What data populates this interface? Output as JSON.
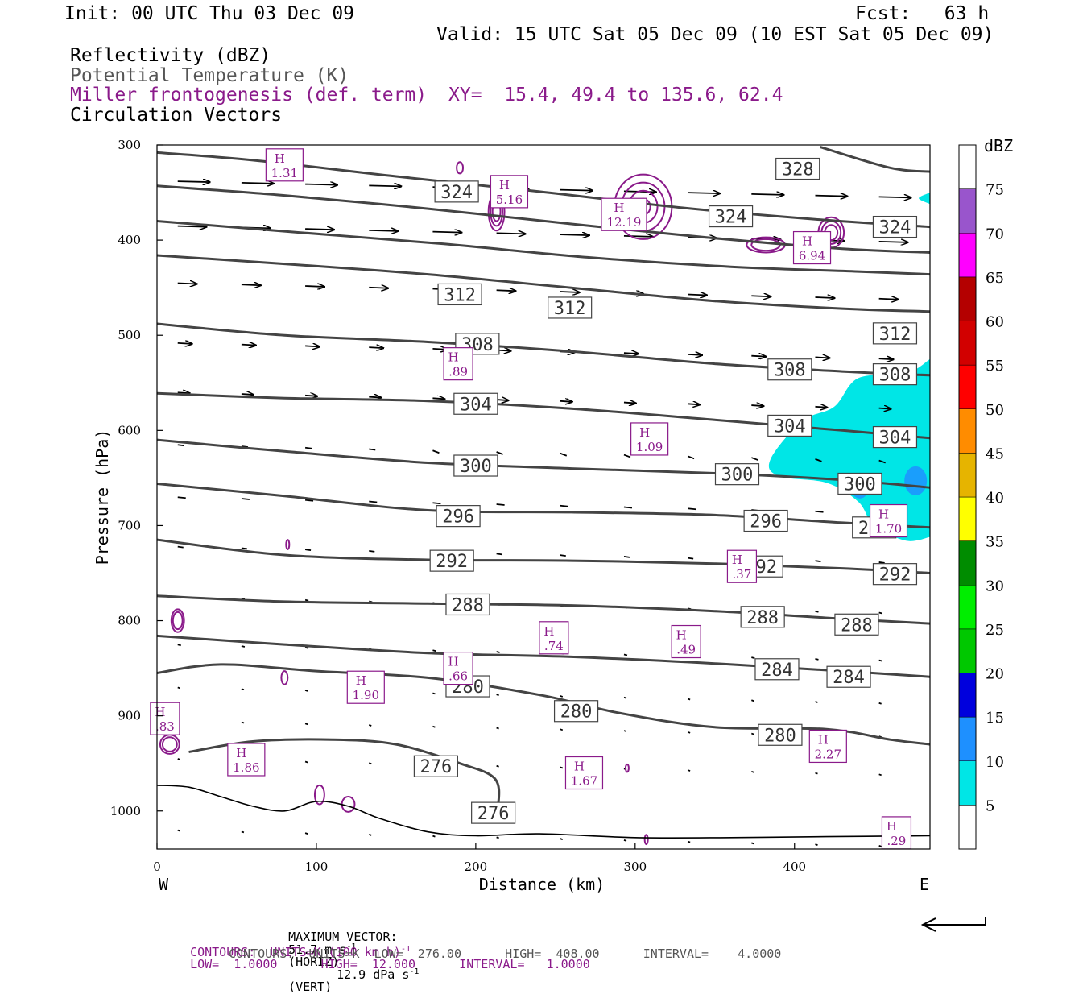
{
  "header": {
    "init": "Init: 00 UTC Thu 03 Dec 09",
    "fcst": "Fcst:   63 h",
    "valid": "Valid: 15 UTC Sat 05 Dec 09 (10 EST Sat 05 Dec 09)",
    "field1": "Reflectivity (dBZ)",
    "field2": "Potential Temperature (K)",
    "field3": "Miller frontogenesis (def. term)",
    "xy": "XY=  15.4, 49.4 to 135.6, 62.4",
    "field4": "Circulation Vectors"
  },
  "footer": {
    "max_vector_label": "MAXIMUM VECTOR:",
    "max_vector_horiz": "51.7 m s",
    "horiz_exp": "-1",
    "horiz_tag": "(HORIZ)",
    "max_vector_vert": "12.9 dPa s",
    "vert_exp": "-1",
    "vert_tag": "(VERT)",
    "contours1_a": "CONTOURS:  UNITS=K (100 km h)",
    "contours1_exp": "-1",
    "contours1_b": "LOW=  1.0000      HIGH=  12.000      INTERVAL=   1.0000",
    "contours2": "CONTOURS:  UNITS=K  LOW=  276.00      HIGH=  408.00      INTERVAL=    4.0000"
  },
  "colors": {
    "theta": "#444444",
    "fronto": "#8a1a8a",
    "cyan": "#00e6e6",
    "blue": "#1e90ff"
  },
  "chart_data": {
    "type": "contour",
    "xlabel": "Distance (km)",
    "ylabel": "Pressure (hPa)",
    "x_left_label": "W",
    "x_right_label": "E",
    "xlim": [
      0,
      485
    ],
    "ylim": [
      300,
      1040
    ],
    "xticks": [
      0,
      100,
      200,
      300,
      400
    ],
    "yticks": [
      300,
      400,
      500,
      600,
      700,
      800,
      900,
      1000
    ],
    "colorbar": {
      "title": "dBZ",
      "levels": [
        "5",
        "10",
        "15",
        "20",
        "25",
        "30",
        "35",
        "40",
        "45",
        "50",
        "55",
        "60",
        "65",
        "70",
        "75"
      ],
      "colors": [
        "#ffffff",
        "#00e6e6",
        "#1e90ff",
        "#0000dd",
        "#00c800",
        "#00ee00",
        "#008c00",
        "#ffff00",
        "#e6b400",
        "#ff8c00",
        "#ff0000",
        "#d20000",
        "#b40000",
        "#ff00ff",
        "#9955cc",
        "#ffffff"
      ]
    },
    "theta_labels": [
      {
        "value": "328",
        "x": 402,
        "p": 325
      },
      {
        "value": "324",
        "x": 188,
        "p": 349
      },
      {
        "value": "324",
        "x": 360,
        "p": 375
      },
      {
        "value": "324",
        "x": 463,
        "p": 386
      },
      {
        "value": "312",
        "x": 190,
        "p": 457
      },
      {
        "value": "312",
        "x": 259,
        "p": 471
      },
      {
        "value": "312",
        "x": 463,
        "p": 498
      },
      {
        "value": "308",
        "x": 201,
        "p": 509
      },
      {
        "value": "308",
        "x": 397,
        "p": 536
      },
      {
        "value": "308",
        "x": 463,
        "p": 541
      },
      {
        "value": "304",
        "x": 200,
        "p": 572
      },
      {
        "value": "304",
        "x": 397,
        "p": 595
      },
      {
        "value": "304",
        "x": 463,
        "p": 607
      },
      {
        "value": "300",
        "x": 200,
        "p": 637
      },
      {
        "value": "300",
        "x": 364,
        "p": 646
      },
      {
        "value": "300",
        "x": 441,
        "p": 656
      },
      {
        "value": "296",
        "x": 189,
        "p": 690
      },
      {
        "value": "296",
        "x": 382,
        "p": 695
      },
      {
        "value": "296",
        "x": 450,
        "p": 702
      },
      {
        "value": "292",
        "x": 185,
        "p": 737
      },
      {
        "value": "292",
        "x": 379,
        "p": 743
      },
      {
        "value": "292",
        "x": 463,
        "p": 751
      },
      {
        "value": "288",
        "x": 195,
        "p": 783
      },
      {
        "value": "288",
        "x": 380,
        "p": 796
      },
      {
        "value": "288",
        "x": 439,
        "p": 804
      },
      {
        "value": "284",
        "x": 389,
        "p": 851
      },
      {
        "value": "284",
        "x": 434,
        "p": 859
      },
      {
        "value": "280",
        "x": 195,
        "p": 869
      },
      {
        "value": "280",
        "x": 263,
        "p": 895
      },
      {
        "value": "280",
        "x": 391,
        "p": 920
      },
      {
        "value": "276",
        "x": 175,
        "p": 953
      },
      {
        "value": "276",
        "x": 211,
        "p": 1002
      }
    ],
    "theta_lines": [
      {
        "k": 328,
        "pts": [
          [
            416,
            302
          ],
          [
            460,
            324
          ],
          [
            485,
            328
          ]
        ]
      },
      {
        "k": 324,
        "pts": [
          [
            0,
            308
          ],
          [
            60,
            316
          ],
          [
            150,
            333
          ],
          [
            240,
            349
          ],
          [
            330,
            366
          ],
          [
            420,
            379
          ],
          [
            485,
            386
          ]
        ]
      },
      {
        "k": 320,
        "pts": [
          [
            0,
            343
          ],
          [
            80,
            353
          ],
          [
            170,
            367
          ],
          [
            260,
            383
          ],
          [
            350,
            398
          ],
          [
            430,
            409
          ],
          [
            485,
            413
          ]
        ]
      },
      {
        "k": 316,
        "pts": [
          [
            0,
            380
          ],
          [
            90,
            392
          ],
          [
            180,
            404
          ],
          [
            270,
            418
          ],
          [
            360,
            428
          ],
          [
            440,
            433
          ],
          [
            485,
            436
          ]
        ]
      },
      {
        "k": 312,
        "pts": [
          [
            0,
            416
          ],
          [
            80,
            425
          ],
          [
            170,
            436
          ],
          [
            260,
            450
          ],
          [
            350,
            464
          ],
          [
            430,
            472
          ],
          [
            485,
            475
          ]
        ]
      },
      {
        "k": 308,
        "pts": [
          [
            0,
            488
          ],
          [
            80,
            500
          ],
          [
            170,
            507
          ],
          [
            260,
            517
          ],
          [
            350,
            530
          ],
          [
            430,
            538
          ],
          [
            485,
            542
          ]
        ]
      },
      {
        "k": 304,
        "pts": [
          [
            0,
            561
          ],
          [
            80,
            566
          ],
          [
            170,
            569
          ],
          [
            260,
            577
          ],
          [
            350,
            589
          ],
          [
            430,
            600
          ],
          [
            485,
            608
          ]
        ]
      },
      {
        "k": 300,
        "pts": [
          [
            0,
            610
          ],
          [
            80,
            622
          ],
          [
            170,
            634
          ],
          [
            260,
            640
          ],
          [
            350,
            645
          ],
          [
            430,
            652
          ],
          [
            485,
            660
          ]
        ]
      },
      {
        "k": 296,
        "pts": [
          [
            0,
            656
          ],
          [
            80,
            669
          ],
          [
            170,
            684
          ],
          [
            260,
            686
          ],
          [
            350,
            689
          ],
          [
            430,
            697
          ],
          [
            485,
            702
          ]
        ]
      },
      {
        "k": 292,
        "pts": [
          [
            0,
            715
          ],
          [
            80,
            731
          ],
          [
            170,
            736
          ],
          [
            260,
            737
          ],
          [
            350,
            740
          ],
          [
            430,
            745
          ],
          [
            485,
            750
          ]
        ]
      },
      {
        "k": 288,
        "pts": [
          [
            0,
            774
          ],
          [
            80,
            780
          ],
          [
            170,
            782
          ],
          [
            260,
            784
          ],
          [
            350,
            790
          ],
          [
            430,
            798
          ],
          [
            485,
            803
          ]
        ]
      },
      {
        "k": 284,
        "pts": [
          [
            0,
            816
          ],
          [
            80,
            825
          ],
          [
            170,
            834
          ],
          [
            260,
            838
          ],
          [
            350,
            845
          ],
          [
            430,
            853
          ],
          [
            485,
            859
          ]
        ]
      },
      {
        "k": 280,
        "pts": [
          [
            0,
            855
          ],
          [
            40,
            846
          ],
          [
            100,
            853
          ],
          [
            170,
            860
          ],
          [
            240,
            878
          ],
          [
            290,
            897
          ],
          [
            350,
            912
          ],
          [
            420,
            914
          ],
          [
            460,
            925
          ],
          [
            485,
            930
          ]
        ]
      },
      {
        "k": 276,
        "pts": [
          [
            20,
            938
          ],
          [
            60,
            927
          ],
          [
            110,
            925
          ],
          [
            150,
            930
          ],
          [
            190,
            950
          ],
          [
            212,
            966
          ],
          [
            214,
            995
          ],
          [
            210,
            1012
          ]
        ]
      }
    ],
    "fronto_maxima": [
      {
        "label": "H",
        "value": "1.31",
        "x": 80,
        "p": 321
      },
      {
        "label": "H",
        "value": "5.16",
        "x": 221,
        "p": 349
      },
      {
        "label": "H",
        "value": "12.19",
        "x": 293,
        "p": 373
      },
      {
        "label": "H",
        "value": "6.94",
        "x": 411,
        "p": 408
      },
      {
        "label": "H",
        "value": ".89",
        "x": 189,
        "p": 530
      },
      {
        "label": "H",
        "value": "1.09",
        "x": 309,
        "p": 609
      },
      {
        "label": "H",
        "value": "1.70",
        "x": 459,
        "p": 695
      },
      {
        "label": "H",
        "value": ".37",
        "x": 367,
        "p": 743
      },
      {
        "label": "H",
        "value": ".74",
        "x": 249,
        "p": 818
      },
      {
        "label": "H",
        "value": ".49",
        "x": 332,
        "p": 822
      },
      {
        "label": "H",
        "value": ".66",
        "x": 189,
        "p": 850
      },
      {
        "label": "H",
        "value": "1.90",
        "x": 131,
        "p": 870
      },
      {
        "label": "H",
        "value": ".83",
        "x": 5,
        "p": 903
      },
      {
        "label": "H",
        "value": "1.86",
        "x": 56,
        "p": 946
      },
      {
        "label": "H",
        "value": "1.67",
        "x": 268,
        "p": 960
      },
      {
        "label": "H",
        "value": "2.27",
        "x": 421,
        "p": 932
      },
      {
        "label": "H",
        "value": ".29",
        "x": 464,
        "p": 1023
      }
    ]
  }
}
